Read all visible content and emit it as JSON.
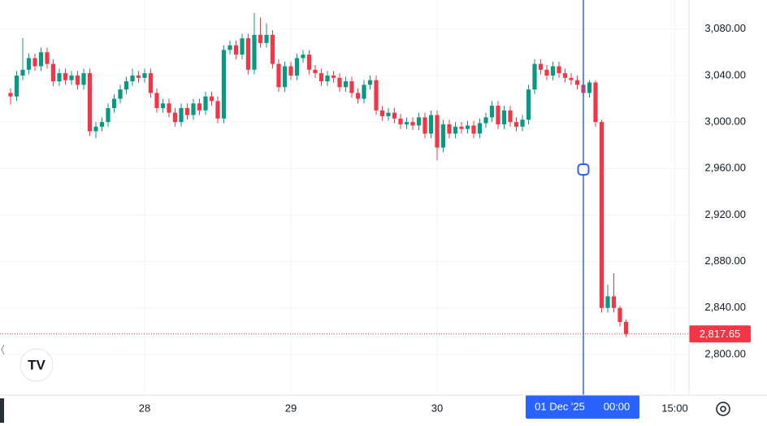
{
  "chart_data": {
    "type": "candlestick",
    "categories": [
      null,
      null,
      null,
      null,
      null,
      null,
      null,
      null,
      null,
      null,
      null,
      null,
      null,
      null,
      null,
      null,
      null,
      null,
      null,
      null,
      null,
      null,
      "28",
      null,
      null,
      null,
      null,
      null,
      null,
      null,
      null,
      null,
      null,
      null,
      null,
      null,
      null,
      null,
      null,
      null,
      null,
      null,
      null,
      null,
      null,
      null,
      "29",
      null,
      null,
      null,
      null,
      null,
      null,
      null,
      null,
      null,
      null,
      null,
      null,
      null,
      null,
      null,
      null,
      null,
      null,
      null,
      null,
      null,
      null,
      null,
      "30",
      null,
      null,
      null,
      null,
      null,
      null,
      null,
      null,
      null,
      null,
      null,
      null,
      null,
      null,
      null,
      null,
      null,
      null,
      null,
      null,
      null,
      null,
      null,
      "01 Dec '25",
      null,
      null,
      null,
      null,
      null,
      null,
      null,
      null,
      null,
      null,
      null,
      null,
      null,
      null,
      "15:00",
      null,
      null
    ],
    "open": [
      3025,
      3022,
      3040,
      3045,
      3055,
      3048,
      3060,
      3050,
      3035,
      3042,
      3036,
      3040,
      3032,
      3042,
      2992,
      2996,
      3000,
      3012,
      3020,
      3028,
      3035,
      3040,
      3038,
      3042,
      3025,
      3012,
      3016,
      3008,
      3000,
      3012,
      3006,
      3016,
      3010,
      3022,
      3018,
      3003,
      3062,
      3066,
      3058,
      3072,
      3045,
      3075,
      3068,
      3075,
      3050,
      3030,
      3048,
      3040,
      3055,
      3058,
      3045,
      3042,
      3035,
      3040,
      3038,
      3030,
      3035,
      3025,
      3020,
      3032,
      3036,
      3010,
      3005,
      3008,
      3003,
      2998,
      3000,
      2997,
      3004,
      2990,
      3006,
      2978,
      2998,
      2990,
      2996,
      2994,
      2997,
      2990,
      2999,
      3004,
      3014,
      2998,
      3010,
      3000,
      2996,
      3002,
      3028,
      3050,
      3045,
      3040,
      3048,
      3042,
      3038,
      3036,
      3032,
      3025,
      3034,
      3000,
      2840,
      2850,
      2840,
      2828,
      null,
      null,
      null,
      null,
      null,
      null,
      null,
      null,
      null,
      null
    ],
    "high": [
      3029,
      3044,
      3072,
      3059,
      3059,
      3064,
      3064,
      3054,
      3046,
      3046,
      3044,
      3044,
      3046,
      3046,
      3000,
      3004,
      3016,
      3024,
      3032,
      3039,
      3046,
      3044,
      3046,
      3046,
      3029,
      3020,
      3020,
      3012,
      3016,
      3016,
      3020,
      3020,
      3026,
      3026,
      3022,
      3066,
      3070,
      3070,
      3076,
      3076,
      3094,
      3090,
      3085,
      3079,
      3054,
      3052,
      3052,
      3059,
      3062,
      3062,
      3049,
      3046,
      3044,
      3044,
      3042,
      3039,
      3039,
      3029,
      3036,
      3040,
      3040,
      3014,
      3012,
      3012,
      3007,
      3004,
      3004,
      3008,
      3008,
      3010,
      3010,
      3002,
      3002,
      3000,
      3000,
      3001,
      3001,
      3003,
      3008,
      3018,
      3018,
      3014,
      3014,
      3004,
      3006,
      3032,
      3054,
      3054,
      3049,
      3052,
      3052,
      3046,
      3042,
      3040,
      3036,
      3036,
      3036,
      3002,
      2860,
      2870,
      2842,
      2830,
      null,
      null,
      null,
      null,
      null,
      null,
      null,
      null,
      null,
      null
    ],
    "low": [
      3015,
      3018,
      3036,
      3041,
      3044,
      3044,
      3046,
      3031,
      3031,
      3032,
      3032,
      3028,
      3028,
      2988,
      2986,
      2992,
      2996,
      3008,
      3016,
      3024,
      3031,
      3034,
      3034,
      3021,
      3008,
      3008,
      3004,
      2996,
      2996,
      3002,
      3002,
      3006,
      3006,
      3014,
      2999,
      2999,
      3058,
      3054,
      3054,
      3041,
      3041,
      3064,
      3064,
      3046,
      3026,
      3026,
      3036,
      3036,
      3051,
      3041,
      3038,
      3031,
      3031,
      3034,
      3026,
      3026,
      3021,
      3016,
      3016,
      3028,
      3006,
      3001,
      3001,
      2999,
      2994,
      2994,
      2993,
      2993,
      2986,
      2986,
      2967,
      2974,
      2986,
      2986,
      2990,
      2990,
      2986,
      2986,
      2995,
      3000,
      2994,
      2994,
      2996,
      2992,
      2992,
      2998,
      3024,
      3041,
      3036,
      3036,
      3038,
      3034,
      3032,
      3028,
      3021,
      3021,
      2996,
      2836,
      2836,
      2836,
      2824,
      2815,
      null,
      null,
      null,
      null,
      null,
      null,
      null,
      null,
      null,
      null
    ],
    "close": [
      3022,
      3040,
      3045,
      3055,
      3048,
      3060,
      3050,
      3035,
      3042,
      3036,
      3040,
      3032,
      3042,
      2992,
      2996,
      3000,
      3012,
      3020,
      3028,
      3035,
      3040,
      3038,
      3042,
      3025,
      3012,
      3016,
      3008,
      3000,
      3012,
      3006,
      3016,
      3010,
      3022,
      3018,
      3003,
      3062,
      3066,
      3058,
      3072,
      3045,
      3075,
      3068,
      3075,
      3050,
      3030,
      3048,
      3040,
      3055,
      3058,
      3045,
      3042,
      3035,
      3040,
      3038,
      3030,
      3035,
      3025,
      3020,
      3032,
      3036,
      3010,
      3005,
      3008,
      3003,
      2998,
      3000,
      2997,
      3004,
      2990,
      3006,
      2978,
      2998,
      2990,
      2996,
      2994,
      2997,
      2990,
      2999,
      3004,
      3014,
      2998,
      3010,
      3000,
      2996,
      3002,
      3028,
      3050,
      3045,
      3040,
      3048,
      3042,
      3038,
      3036,
      3032,
      3025,
      3034,
      3000,
      2840,
      2850,
      2840,
      2828,
      2817.65,
      null,
      null,
      null,
      null,
      null,
      null,
      null,
      null,
      null,
      null
    ],
    "up_color": "#089981",
    "down_color": "#f23645",
    "ylim": [
      2765,
      3105
    ],
    "yticks": [
      {
        "value": 2800,
        "label": "2,800.00"
      },
      {
        "value": 2840,
        "label": "2,840.00"
      },
      {
        "value": 2880,
        "label": "2,880.00"
      },
      {
        "value": 2920,
        "label": "2,920.00"
      },
      {
        "value": 2960,
        "label": "2,960.00"
      },
      {
        "value": 3000,
        "label": "3,000.00"
      },
      {
        "value": 3040,
        "label": "3,040.00"
      },
      {
        "value": 3080,
        "label": "3,080.00"
      }
    ],
    "grid": true,
    "last_price": {
      "value": 2817.65,
      "label": "2,817.65",
      "color": "#f23645"
    },
    "crosshair": {
      "time": "00:00",
      "color": "#2962ff"
    }
  }
}
